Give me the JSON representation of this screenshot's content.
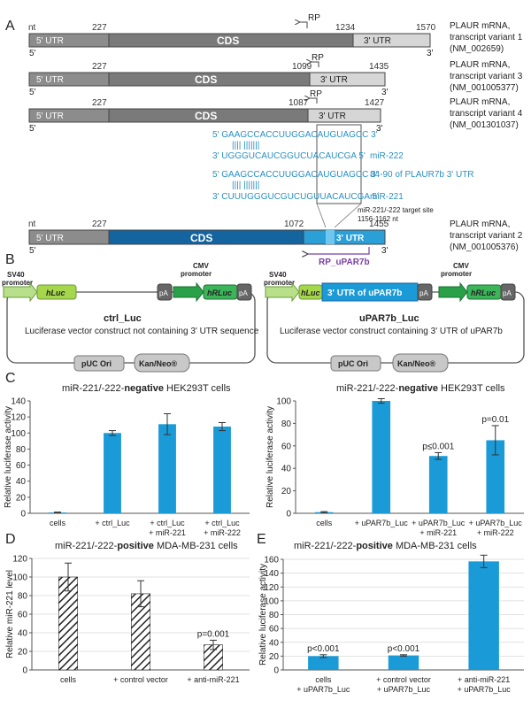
{
  "panel_letters": {
    "a": "A",
    "b": "B",
    "c": "C",
    "d": "D",
    "e": "E"
  },
  "panel_a": {
    "nt": "nt",
    "five_prime": "5'",
    "three_prime": "3'",
    "rp": "RP",
    "transcripts": [
      {
        "utr5": "5' UTR",
        "cds": "CDS",
        "utr3": "3' UTR",
        "start": "227",
        "cds_end": "1234",
        "end": "1570",
        "name1": "PLAUR mRNA,",
        "name2": "transcript variant 1",
        "name3": "(NM_002659)"
      },
      {
        "utr5": "5' UTR",
        "cds": "CDS",
        "utr3": "3' UTR",
        "start": "227",
        "cds_end": "1099",
        "end": "1435",
        "name1": "PLAUR mRNA,",
        "name2": "transcript variant 3",
        "name3": "(NM_001005377)"
      },
      {
        "utr5": "5' UTR",
        "cds": "CDS",
        "utr3": "3' UTR",
        "start": "227",
        "cds_end": "1087",
        "end": "1427",
        "name1": "PLAUR mRNA,",
        "name2": "transcript variant 4",
        "name3": "(NM_001301037)"
      }
    ],
    "alignment": {
      "seq1": "5' GAAGCCACCUUGGACAUGUAGCC 3'",
      "pairs1": "||||    |||||||",
      "mir222": "3'  UGGGUCAUCGGUCUACAUCGA 5'",
      "mir222_label": "miR-222",
      "seq2": "5' GAAGCCACCUUGGACAUGUAGCC 3'",
      "seq2_label": "84-90 of PLAUR7b 3' UTR",
      "pairs2": "||||    |||||||",
      "mir221": "3' CUUUGGGUCGUCUGUUACAUCGA 5'",
      "mir221_label": "miR-221"
    },
    "variant2": {
      "nt": "nt",
      "utr5": "5' UTR",
      "cds": "CDS",
      "utr3": "3' UTR",
      "start": "227",
      "cds_end": "1072",
      "end": "1455",
      "target1": "miR-221/-222 target site",
      "target2": "1156-1162 nt",
      "primer": "RP_uPAR7b",
      "name1": "PLAUR mRNA,",
      "name2": "transcript variant 2",
      "name3": "(NM_001005376)"
    }
  },
  "panel_b": {
    "left": {
      "sv40": "SV40",
      "promoter": "promoter",
      "hluc": "hLuc",
      "pa": "pA",
      "cmv": "CMV",
      "cmv_promoter": "promoter",
      "hrluc": "hRLuc",
      "name": "ctrl_Luc",
      "desc": "Luciferase vector construct not containing 3' UTR sequence",
      "ori": "pUC Ori",
      "kan": "Kan/Neo®"
    },
    "right": {
      "sv40": "SV40",
      "promoter": "promoter",
      "hluc": "hLuc",
      "utr": "3' UTR of uPAR7b",
      "pa": "pA",
      "cmv": "CMV",
      "cmv_promoter": "promoter",
      "hrluc": "hRLuc",
      "name": "uPAR7b_Luc",
      "desc": "Luciferase vector construct containing 3' UTR of uPAR7b",
      "ori": "pUC Ori",
      "kan": "Kan/Neo®"
    }
  },
  "colors": {
    "bar": "#1a9ad6",
    "dark_blue": "#1464a0",
    "utr_blue": "#2ba0d8",
    "green": "#48b040",
    "purple": "#7a3fa0",
    "seq_blue": "#2a8fc0"
  },
  "chart_data": [
    {
      "type": "bar",
      "panel": "C-left",
      "title_prefix": "miR-221/-222-",
      "title_bold": "negative",
      "title_suffix": " HEK293T cells",
      "ylabel": "Relative luciferase activity",
      "ylim": [
        0,
        140
      ],
      "ticks": [
        0,
        20,
        40,
        60,
        80,
        100,
        120,
        140
      ],
      "categories": [
        [
          "cells"
        ],
        [
          "+ ctrl_Luc"
        ],
        [
          "+ ctrl_Luc",
          "+ miR-221"
        ],
        [
          "+ ctrl_Luc",
          "+ miR-222"
        ]
      ],
      "values": [
        1,
        100,
        111,
        108
      ],
      "errors": [
        0.5,
        3,
        13,
        5
      ],
      "annotations": [
        "",
        "",
        "",
        ""
      ],
      "hatched": false
    },
    {
      "type": "bar",
      "panel": "C-right",
      "title_prefix": "miR-221/-222-",
      "title_bold": "negative",
      "title_suffix": " HEK293T cells",
      "ylabel": "Relative luciferase activity",
      "ylim": [
        0,
        100
      ],
      "ticks": [
        0,
        20,
        40,
        60,
        80,
        100
      ],
      "categories": [
        [
          "cells"
        ],
        [
          "+ uPAR7b_Luc"
        ],
        [
          "+ uPAR7b_Luc",
          "+ miR-221"
        ],
        [
          "+ uPAR7b_Luc",
          "+ miR-222"
        ]
      ],
      "values": [
        1,
        100,
        51,
        65
      ],
      "errors": [
        0.5,
        2,
        3,
        13
      ],
      "annotations": [
        "",
        "",
        "p≤0.001",
        "p=0.01"
      ],
      "hatched": false
    },
    {
      "type": "bar",
      "panel": "D",
      "title_prefix": "miR-221/-222-",
      "title_bold": "positive",
      "title_suffix": " MDA-MB-231 cells",
      "ylabel": "Relative miR-221 level",
      "ylim": [
        0,
        120
      ],
      "ticks": [
        0,
        20,
        40,
        60,
        80,
        100,
        120
      ],
      "categories": [
        [
          "cells"
        ],
        [
          "+ control vector"
        ],
        [
          "+ anti-miR-221"
        ]
      ],
      "values": [
        100,
        82,
        27
      ],
      "errors": [
        15,
        14,
        5
      ],
      "annotations": [
        "",
        "",
        "p=0.001"
      ],
      "hatched": true
    },
    {
      "type": "bar",
      "panel": "E",
      "title_prefix": "miR-221/-222-",
      "title_bold": "positive",
      "title_suffix": " MDA-MB-231 cells",
      "ylabel": "Relative luciferase activity",
      "ylim": [
        0,
        160
      ],
      "ticks": [
        0,
        20,
        40,
        60,
        80,
        100,
        120,
        140,
        160
      ],
      "categories": [
        [
          "cells",
          "+ uPAR7b_Luc"
        ],
        [
          "+ control vector",
          "+ uPAR7b_Luc"
        ],
        [
          "+ anti-miR-221",
          "+ uPAR7b_Luc"
        ]
      ],
      "values": [
        20,
        21,
        157
      ],
      "errors": [
        2,
        1,
        9
      ],
      "annotations": [
        "p<0.001",
        "p<0.001",
        ""
      ],
      "hatched": false
    }
  ]
}
